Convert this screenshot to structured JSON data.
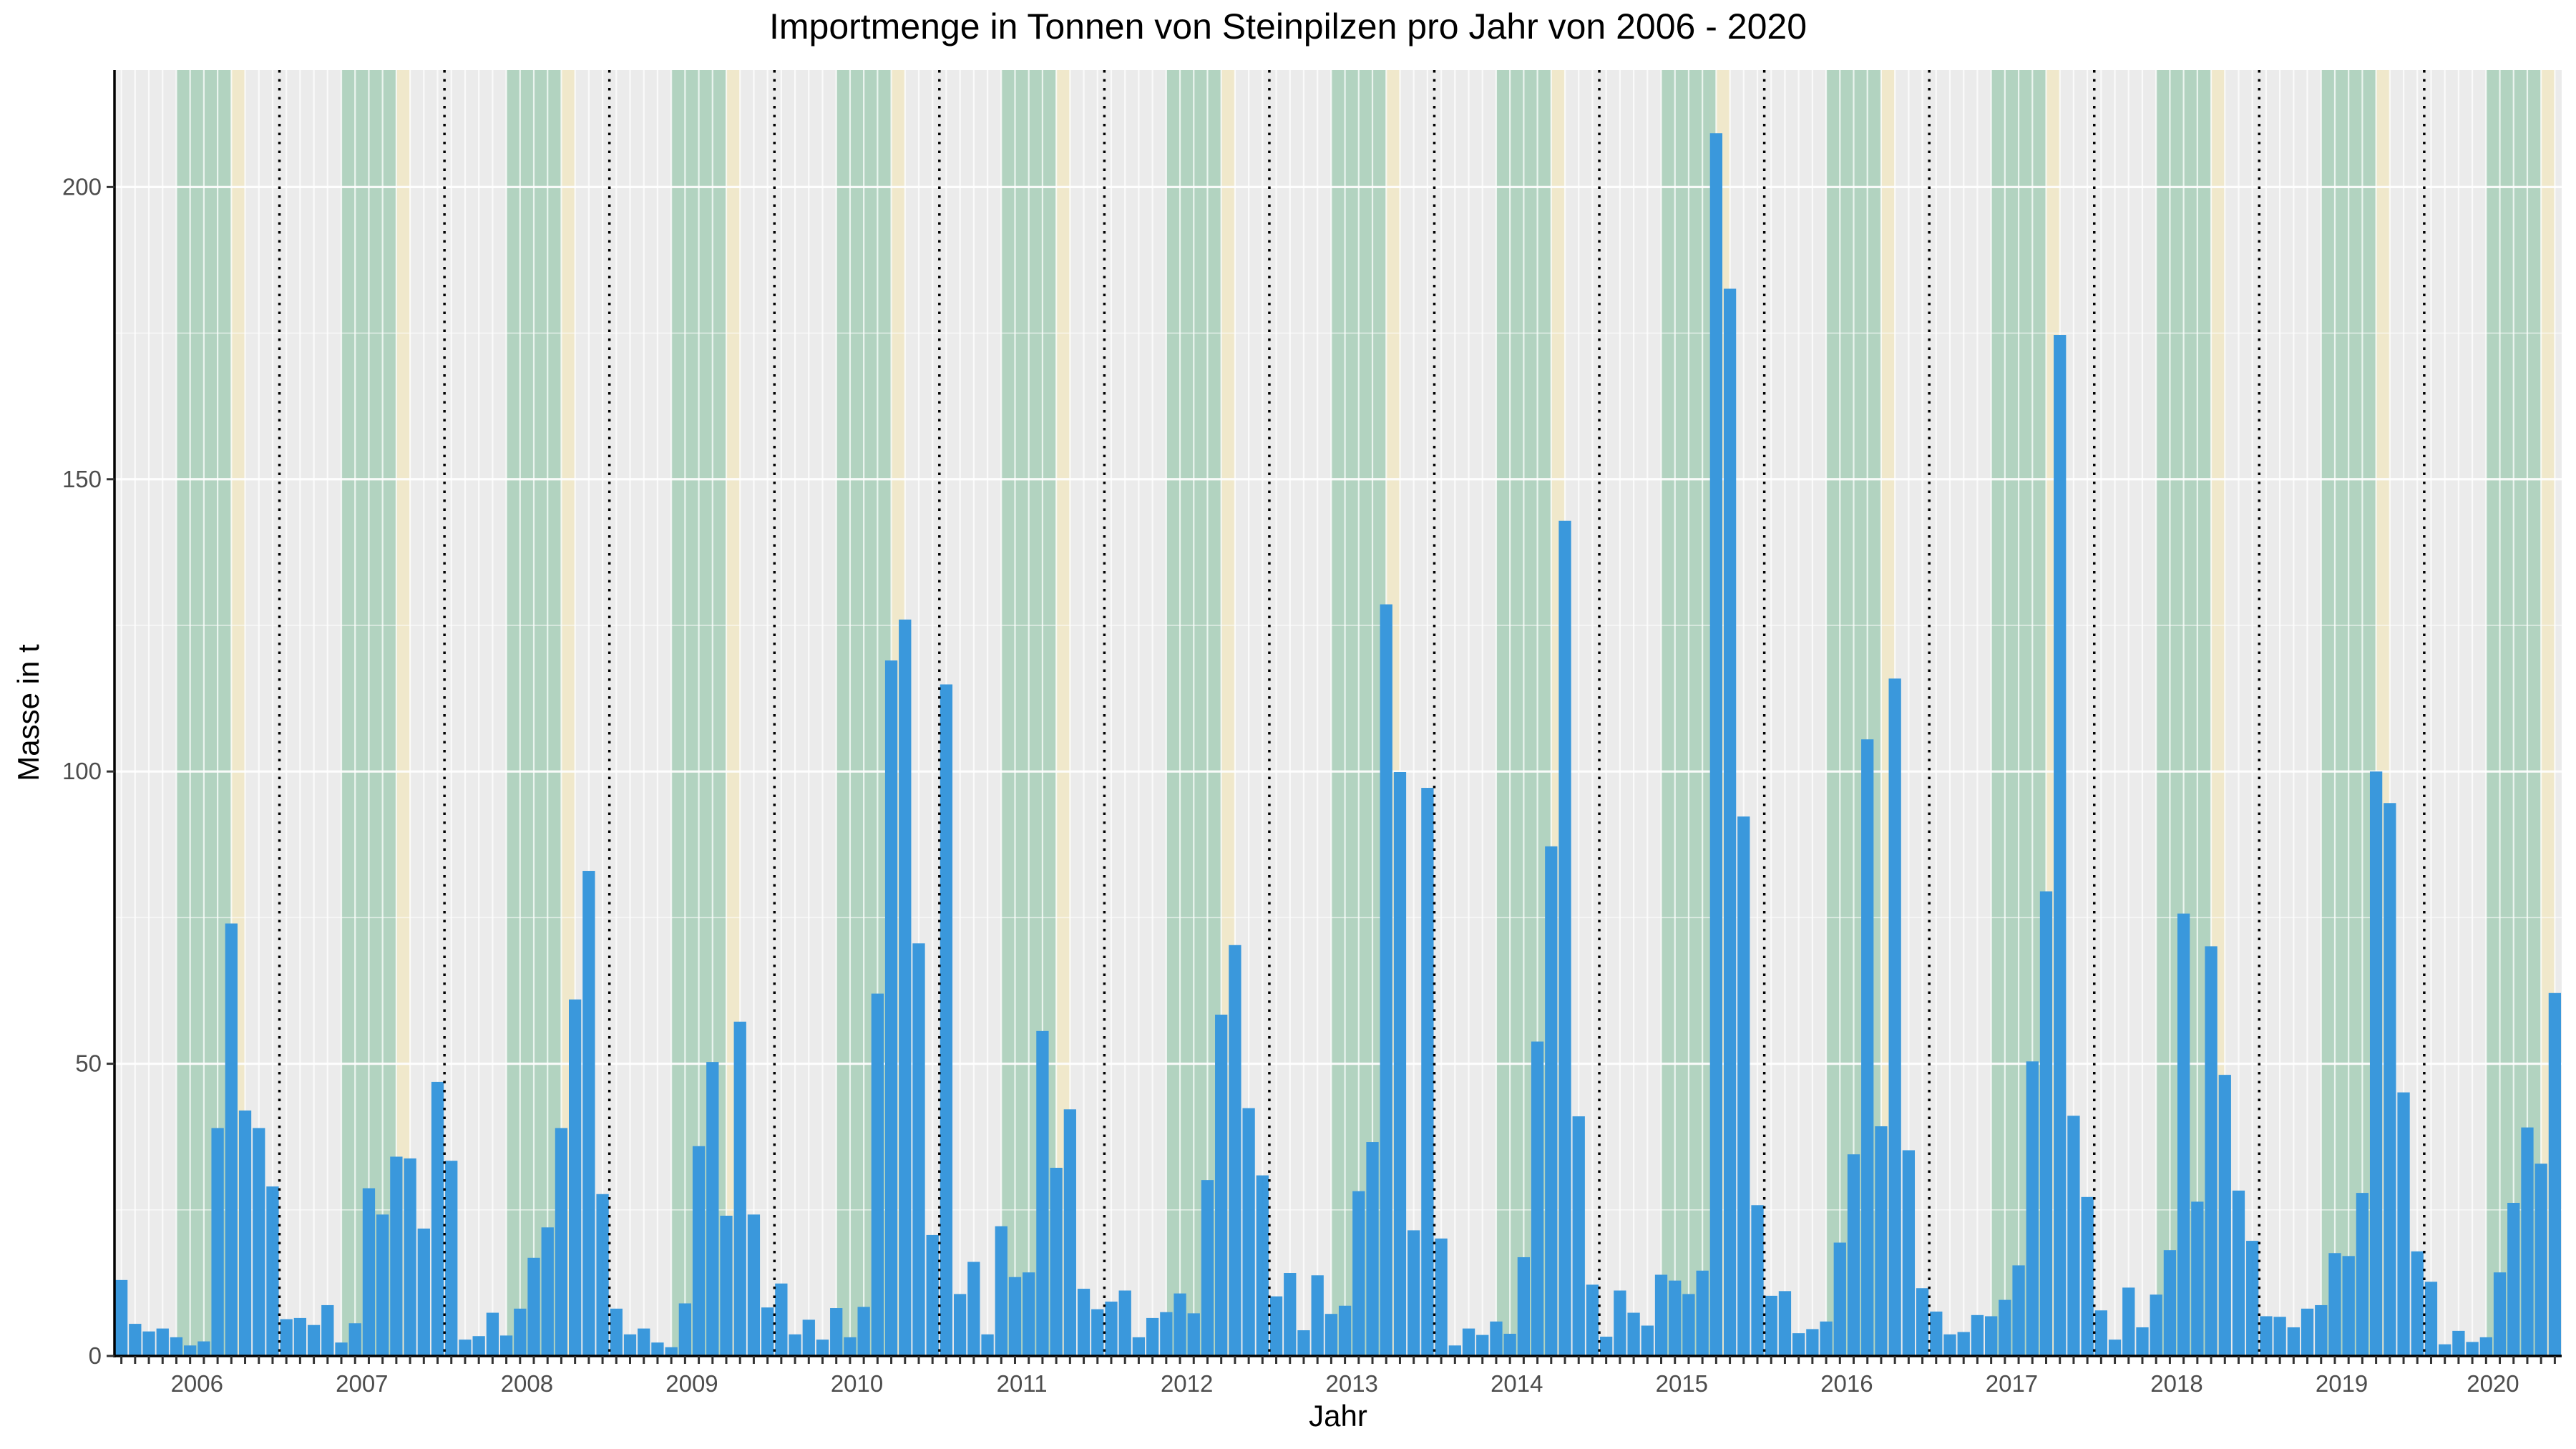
{
  "chart_data": {
    "type": "bar",
    "title": "Importmenge in Tonnen von Steinpilzen pro Jahr von 2006 - 2020",
    "xlabel": "Jahr",
    "ylabel": "Masse in t",
    "ylim": [
      0,
      220
    ],
    "y_ticks": [
      0,
      50,
      100,
      150,
      200
    ],
    "grid": true,
    "legend": "none",
    "bar_color": "#3a98dc",
    "year_labels": [
      "2006",
      "2007",
      "2008",
      "2009",
      "2010",
      "2011",
      "2012",
      "2013",
      "2014",
      "2015",
      "2016",
      "2017",
      "2018",
      "2019",
      "2020"
    ],
    "season_shading": [
      {
        "months": "Jun-Sep",
        "color": "#a8cfb9"
      },
      {
        "months": "Okt",
        "color": "#f1e8c6"
      }
    ],
    "year_separator": "dotted",
    "series": [
      {
        "values": [
          13,
          5.5,
          4.2,
          4.7,
          3.2,
          1.8,
          2.5,
          39,
          74,
          42,
          39,
          29,
          6.3,
          6.5,
          5.3,
          8.7,
          2.3,
          5.6,
          28.7,
          24.2,
          34.1,
          33.8,
          21.8,
          46.9,
          33.4,
          2.8,
          3.4,
          7.4,
          3.5,
          8.1,
          16.8,
          22,
          39,
          61,
          83,
          27.7,
          8.1,
          3.7,
          4.7,
          2.3,
          1.5,
          9,
          35.9,
          50.3,
          24,
          57.2,
          24.2,
          8.3,
          12.4,
          3.7,
          6.2,
          2.8,
          8.2,
          3.2,
          8.4,
          62,
          119,
          126,
          70.6,
          20.7,
          114.9,
          10.6,
          16.1,
          3.7,
          22.2,
          13.5,
          14.3,
          55.6,
          32.2,
          42.2,
          11.5,
          8,
          9.3,
          11.2,
          3.2,
          6.5,
          7.5,
          10.7,
          7.3,
          30.1,
          58.4,
          70.3,
          42.4,
          30.9,
          10.2,
          14.2,
          4.4,
          13.8,
          7.2,
          8.6,
          28.2,
          36.6,
          128.6,
          99.9,
          21.5,
          97.2,
          20.1,
          1.8,
          4.7,
          3.6,
          5.9,
          3.8,
          16.9,
          53.8,
          87.2,
          142.9,
          41,
          12.2,
          3.3,
          11.2,
          7.4,
          5.2,
          13.9,
          12.9,
          10.6,
          14.6,
          209.2,
          182.6,
          92.3,
          25.8,
          10.3,
          11.1,
          3.9,
          4.6,
          5.9,
          19.4,
          34.5,
          105.5,
          39.3,
          115.9,
          35.2,
          11.6,
          7.6,
          3.7,
          4.1,
          7,
          6.8,
          9.6,
          15.5,
          50.4,
          79.5,
          174.7,
          41.1,
          27.2,
          7.8,
          2.8,
          11.7,
          4.9,
          10.5,
          18.1,
          75.7,
          26.4,
          70.1,
          48.1,
          28.3,
          19.7,
          6.8,
          6.7,
          4.9,
          8.1,
          8.7,
          17.6,
          17.1,
          27.9,
          100,
          94.6,
          45.1,
          17.9,
          12.7,
          2,
          4.3,
          2.4,
          3.2,
          14.3,
          26.2,
          39.1,
          32.9,
          62.1
        ]
      }
    ]
  }
}
